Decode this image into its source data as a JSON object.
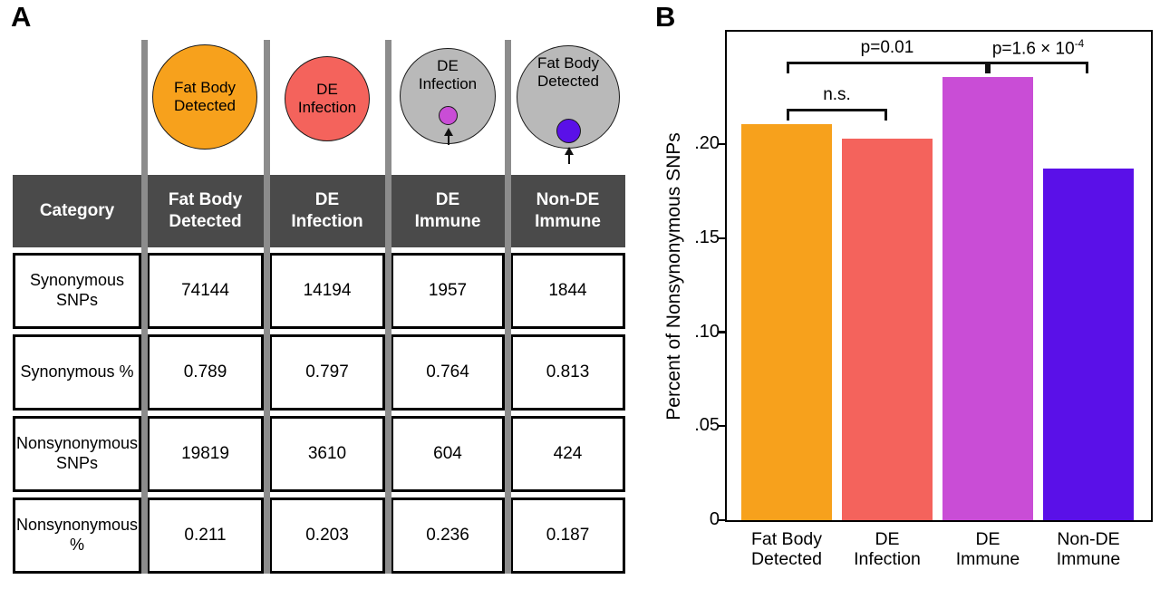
{
  "panel_a": {
    "label": "A",
    "circles": [
      {
        "text": "Fat Body\nDetected",
        "color": "#F7A11C"
      },
      {
        "text": "DE\nInfection",
        "color": "#F4635C"
      },
      {
        "text": "DE\nInfection",
        "color": "#B9B9B9",
        "dot_color": "#C94DD6"
      },
      {
        "text": "Fat Body\nDetected",
        "color": "#B9B9B9",
        "dot_color": "#5A10E8"
      }
    ],
    "table": {
      "headers": [
        "Category",
        "Fat Body\nDetected",
        "DE\nInfection",
        "DE\nImmune",
        "Non-DE\nImmune"
      ],
      "rows": [
        {
          "label": "Synonymous\nSNPs",
          "values": [
            "74144",
            "14194",
            "1957",
            "1844"
          ]
        },
        {
          "label": "Synonymous %",
          "values": [
            "0.789",
            "0.797",
            "0.764",
            "0.813"
          ]
        },
        {
          "label": "Nonsynonymous\nSNPs",
          "values": [
            "19819",
            "3610",
            "604",
            "424"
          ]
        },
        {
          "label": "Nonsynonymous\n%",
          "values": [
            "0.211",
            "0.203",
            "0.236",
            "0.187"
          ]
        }
      ]
    }
  },
  "panel_b": {
    "label": "B"
  },
  "chart_data": {
    "type": "bar",
    "title": "",
    "xlabel": "",
    "ylabel": "Percent of Nonsynonymous SNPs",
    "categories": [
      "Fat Body Detected",
      "DE Infection",
      "DE Immune",
      "Non-DE Immune"
    ],
    "xtick_labels": [
      "Fat Body\nDetected",
      "DE\nInfection",
      "DE\nImmune",
      "Non-DE\nImmune"
    ],
    "values": [
      0.211,
      0.203,
      0.236,
      0.187
    ],
    "colors": [
      "#F7A11C",
      "#F4635C",
      "#C94DD6",
      "#5A10E8"
    ],
    "ylim": [
      0,
      0.26
    ],
    "yticks": [
      0,
      0.05,
      0.1,
      0.15,
      0.2
    ],
    "ytick_labels": [
      "0",
      ".05",
      ".10",
      ".15",
      ".20"
    ],
    "grid": false,
    "legend": "none",
    "annotations": [
      {
        "label": "n.s.",
        "from": 0,
        "to": 1
      },
      {
        "label": "p=0.01",
        "from": 0,
        "to": 2
      },
      {
        "label_prefix": "p=1.6 × 10",
        "label_exp": "-4",
        "from": 2,
        "to": 3
      }
    ]
  }
}
